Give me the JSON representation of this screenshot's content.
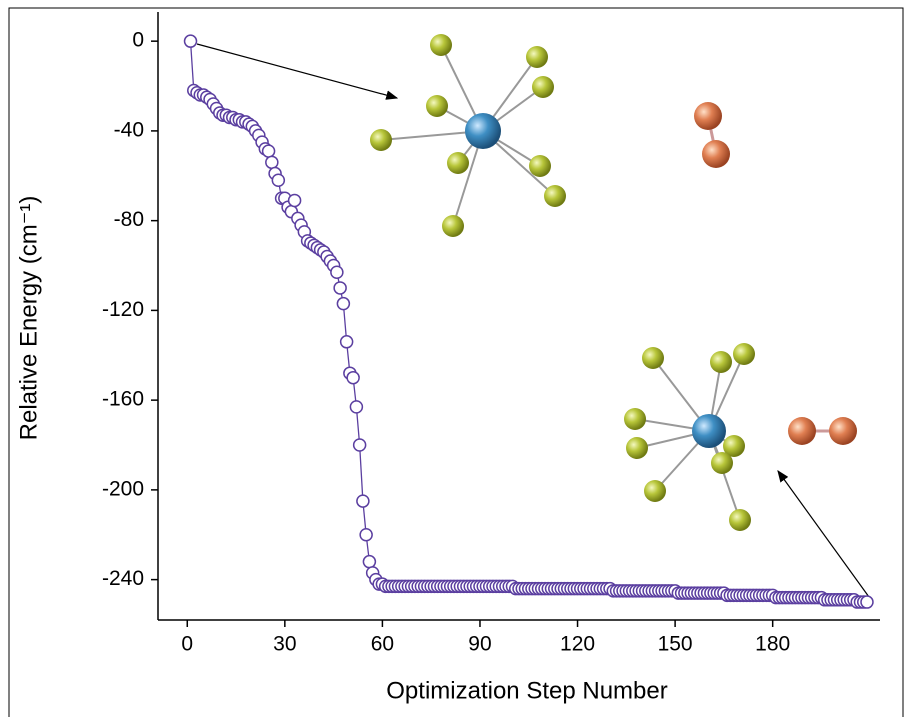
{
  "chart_data": {
    "type": "scatter",
    "connect": true,
    "xlabel": "Optimization Step Number",
    "ylabel": "Relative Energy (cm⁻¹)",
    "xlim": [
      -9,
      213
    ],
    "ylim": [
      -258,
      13
    ],
    "xticks": [
      0,
      30,
      60,
      90,
      120,
      150,
      180
    ],
    "yticks": [
      0,
      -40,
      -80,
      -120,
      -160,
      -200,
      -240
    ],
    "color": "#5b3fa0",
    "x": [
      1,
      2,
      3,
      4,
      5,
      6,
      7,
      8,
      9,
      10,
      11,
      12,
      13,
      14,
      15,
      16,
      17,
      18,
      19,
      20,
      21,
      22,
      23,
      24,
      25,
      26,
      27,
      28,
      29,
      30,
      31,
      32,
      33,
      34,
      35,
      36,
      37,
      38,
      39,
      40,
      41,
      42,
      43,
      44,
      45,
      46,
      47,
      48,
      49,
      50,
      51,
      52,
      53,
      54,
      55,
      56,
      57,
      58,
      59,
      60,
      61,
      62,
      63,
      64,
      65,
      66,
      67,
      68,
      69,
      70,
      71,
      72,
      73,
      74,
      75,
      76,
      77,
      78,
      79,
      80,
      81,
      82,
      83,
      84,
      85,
      86,
      87,
      88,
      89,
      90,
      91,
      92,
      93,
      94,
      95,
      96,
      97,
      98,
      99,
      100,
      101,
      102,
      103,
      104,
      105,
      106,
      107,
      108,
      109,
      110,
      111,
      112,
      113,
      114,
      115,
      116,
      117,
      118,
      119,
      120,
      121,
      122,
      123,
      124,
      125,
      126,
      127,
      128,
      129,
      130,
      131,
      132,
      133,
      134,
      135,
      136,
      137,
      138,
      139,
      140,
      141,
      142,
      143,
      144,
      145,
      146,
      147,
      148,
      149,
      150,
      151,
      152,
      153,
      154,
      155,
      156,
      157,
      158,
      159,
      160,
      161,
      162,
      163,
      164,
      165,
      166,
      167,
      168,
      169,
      170,
      171,
      172,
      173,
      174,
      175,
      176,
      177,
      178,
      179,
      180,
      181,
      182,
      183,
      184,
      185,
      186,
      187,
      188,
      189,
      190,
      191,
      192,
      193,
      194,
      195,
      196,
      197,
      198,
      199,
      200,
      201,
      202,
      203,
      204,
      205,
      206,
      207,
      208,
      209
    ],
    "values": [
      0,
      -22,
      -23,
      -24,
      -24,
      -25,
      -26,
      -28,
      -30,
      -32,
      -33,
      -33,
      -34,
      -34,
      -35,
      -35,
      -36,
      -36,
      -37,
      -38,
      -40,
      -42,
      -45,
      -48,
      -49,
      -54,
      -59,
      -62,
      -70,
      -70,
      -74,
      -76,
      -71,
      -79,
      -82,
      -85,
      -89,
      -90,
      -91,
      -92,
      -93,
      -94,
      -96,
      -98,
      -100,
      -103,
      -110,
      -117,
      -134,
      -148,
      -150,
      -163,
      -180,
      -205,
      -220,
      -232,
      -237,
      -240,
      -242,
      -242,
      -243,
      -243,
      -243,
      -243,
      -243,
      -243,
      -243,
      -243,
      -243,
      -243,
      -243,
      -243,
      -243,
      -243,
      -243,
      -243,
      -243,
      -243,
      -243,
      -243,
      -243,
      -243,
      -243,
      -243,
      -243,
      -243,
      -243,
      -243,
      -243,
      -243,
      -243,
      -243,
      -243,
      -243,
      -243,
      -243,
      -243,
      -243,
      -243,
      -243,
      -244,
      -244,
      -244,
      -244,
      -244,
      -244,
      -244,
      -244,
      -244,
      -244,
      -244,
      -244,
      -244,
      -244,
      -244,
      -244,
      -244,
      -244,
      -244,
      -244,
      -244,
      -244,
      -244,
      -244,
      -244,
      -244,
      -244,
      -244,
      -244,
      -244,
      -245,
      -245,
      -245,
      -245,
      -245,
      -245,
      -245,
      -245,
      -245,
      -245,
      -245,
      -245,
      -245,
      -245,
      -245,
      -245,
      -245,
      -245,
      -245,
      -245,
      -246,
      -246,
      -246,
      -246,
      -246,
      -246,
      -246,
      -246,
      -246,
      -246,
      -246,
      -246,
      -246,
      -246,
      -246,
      -247,
      -247,
      -247,
      -247,
      -247,
      -247,
      -247,
      -247,
      -247,
      -247,
      -247,
      -247,
      -247,
      -247,
      -247,
      -248,
      -248,
      -248,
      -248,
      -248,
      -248,
      -248,
      -248,
      -248,
      -248,
      -248,
      -248,
      -248,
      -248,
      -248,
      -249,
      -249,
      -249,
      -249,
      -249,
      -249,
      -249,
      -249,
      -249,
      -249,
      -250,
      -250,
      -250,
      -250
    ]
  }
}
